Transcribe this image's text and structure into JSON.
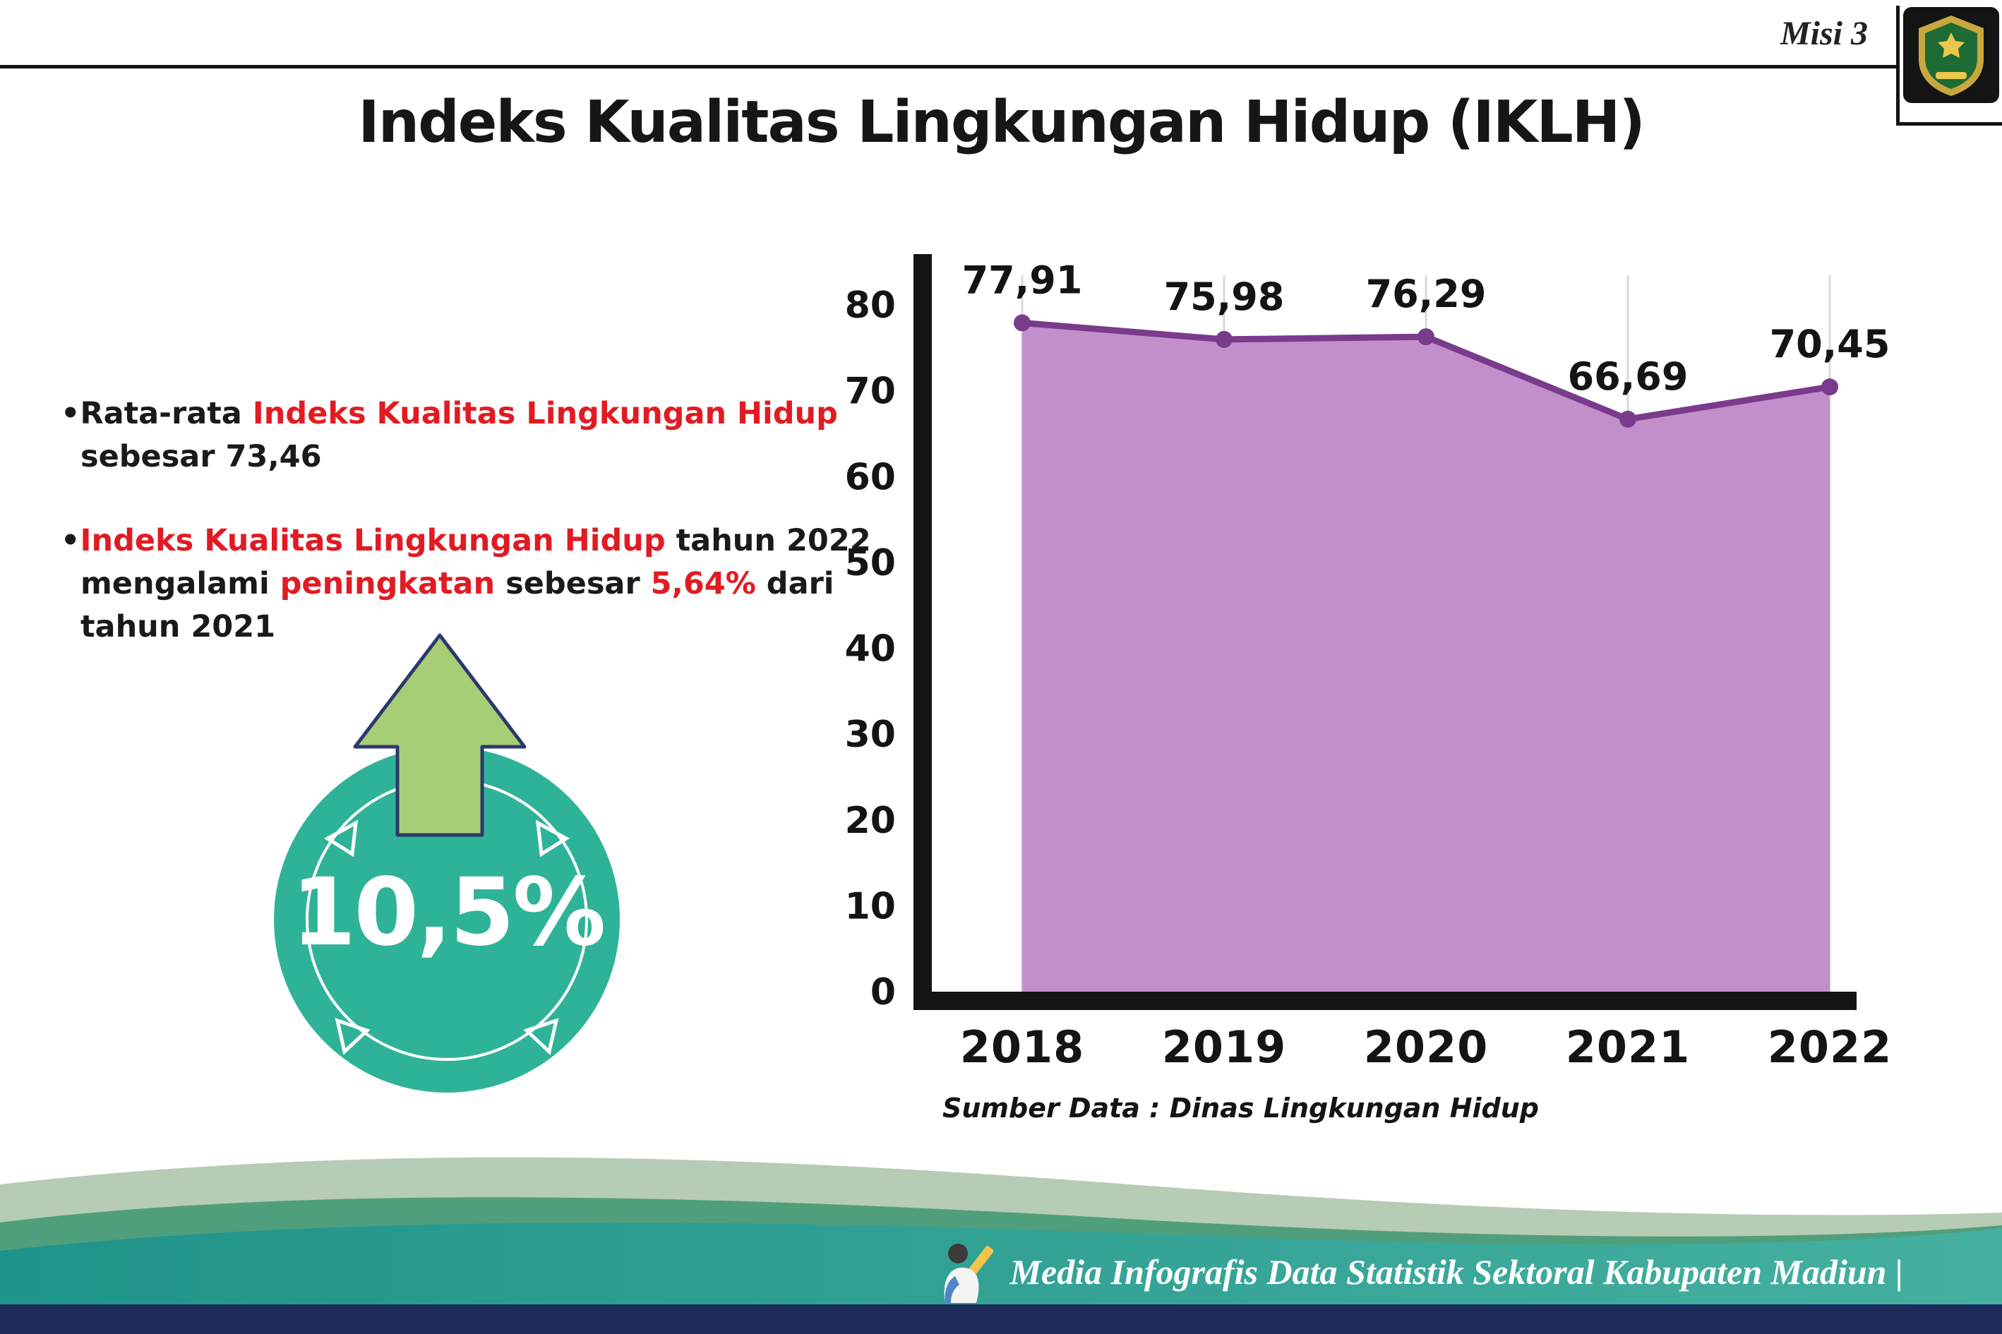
{
  "colors": {
    "accent_red": "#e11b23",
    "badge_teal": "#2fb398",
    "badge_arrow_green": "#a7cd76",
    "line_purple": "#7a3b8c",
    "fill_purple": "#c28fca",
    "footer_sage": "#b7ccb4",
    "footer_green": "#4f9f7c",
    "footer_teal": "#2a9d92",
    "footer_navy": "#1d2c5b"
  },
  "header": {
    "misi_label": "Misi 3",
    "title": "Indeks Kualitas Lingkungan Hidup (IKLH)",
    "logo_alt": "Kabupaten Madiun"
  },
  "bullets": {
    "b1": {
      "marker": "•",
      "s1": "Rata-rata ",
      "s2": "Indeks Kualitas Lingkungan Hidup",
      "s3": " sebesar 73,46"
    },
    "b2": {
      "marker": "•",
      "s1": "Indeks Kualitas Lingkungan Hidup",
      "s2": " tahun 2022 mengalami ",
      "s3": "peningkatan",
      "s4": " sebesar ",
      "s5": "5,64%",
      "s6": " dari tahun 2021"
    }
  },
  "badge": {
    "value": "10,5%",
    "icon": "arrow-up-icon"
  },
  "chart_data": {
    "type": "area",
    "title": "Indeks Kualitas Lingkungan Hidup (IKLH)",
    "categories": [
      "2018",
      "2019",
      "2020",
      "2021",
      "2022"
    ],
    "series": [
      {
        "name": "IKLH",
        "values": [
          77.91,
          75.98,
          76.29,
          66.69,
          70.45
        ]
      }
    ],
    "point_labels": [
      "77,91",
      "75,98",
      "76,29",
      "66,69",
      "70,45"
    ],
    "ylim": [
      0,
      80
    ],
    "yticks": [
      0,
      10,
      20,
      30,
      40,
      50,
      60,
      70,
      80
    ],
    "grid": "vertical",
    "legend": "none",
    "line_color": "#7a3b8c",
    "fill_color": "#c28fca",
    "source": "Sumber Data : Dinas Lingkungan Hidup"
  },
  "footer": {
    "credit": "Media Infografis Data Statistik Sektoral Kabupaten Madiun |"
  }
}
